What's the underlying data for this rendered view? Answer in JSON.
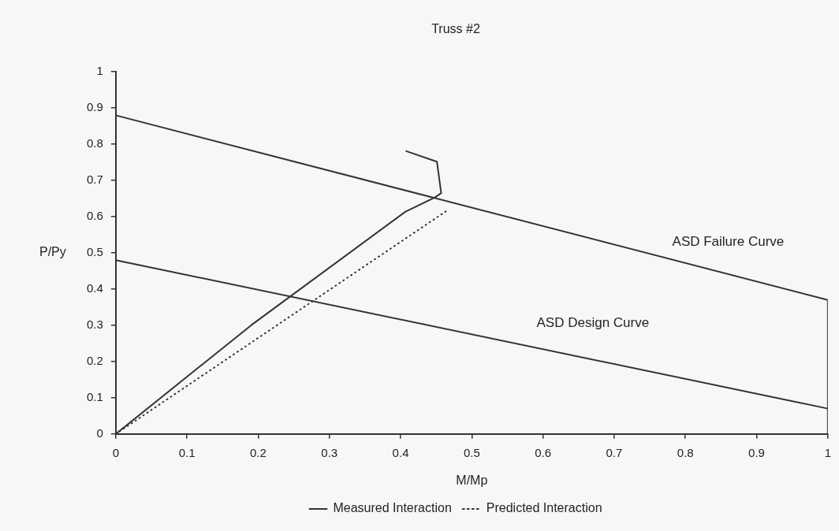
{
  "chart_data": {
    "type": "line",
    "title": "Truss #2",
    "xlabel": "M/Mp",
    "ylabel": "P/Py",
    "xlim": [
      0,
      1
    ],
    "xticks": [
      0,
      0.1,
      0.2,
      0.3,
      0.4,
      0.5,
      0.6,
      0.7,
      0.8,
      0.9,
      1
    ],
    "ylim": [
      0,
      1
    ],
    "yticks": [
      0,
      0.1,
      0.2,
      0.3,
      0.4,
      0.5,
      0.6,
      0.7,
      0.8,
      0.9,
      1
    ],
    "grid": false,
    "legend": "bottom",
    "marker": "none",
    "series": [
      {
        "color": "#333333",
        "x": [
          0,
          1,
          1
        ],
        "values": [
          0.88,
          0.37,
          0
        ],
        "line_style": "solid"
      },
      {
        "color": "#333333",
        "x": [
          0,
          1
        ],
        "values": [
          0.48,
          0.07
        ],
        "line_style": "solid"
      },
      {
        "name": "Measured Interaction",
        "color": "#333333",
        "x": [
          0,
          0.19,
          0.407,
          0.448,
          0.457,
          0.451,
          0.408
        ],
        "values": [
          0,
          0.3,
          0.614,
          0.653,
          0.665,
          0.752,
          0.781
        ],
        "line_style": "solid"
      },
      {
        "name": "Predicted Interaction",
        "color": "#333333",
        "x": [
          0,
          0.466
        ],
        "values": [
          0,
          0.618
        ],
        "line_style": "dotted"
      }
    ],
    "annotations": [
      "ASD Failure Curve",
      "ASD Design Curve"
    ]
  }
}
